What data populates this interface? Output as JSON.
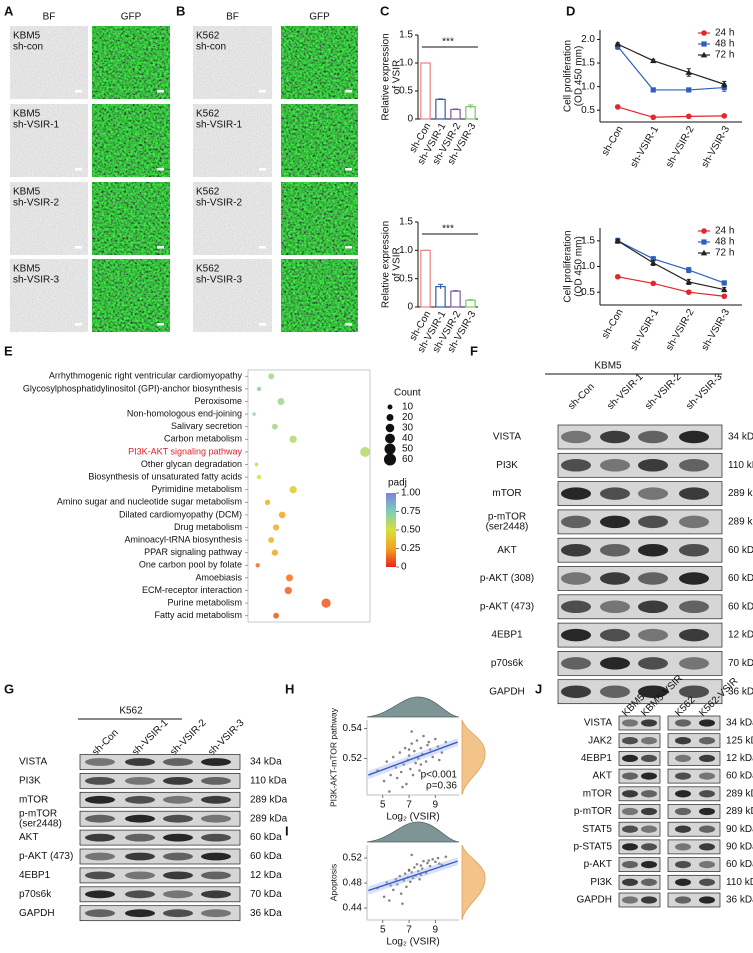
{
  "panel_labels": [
    "A",
    "B",
    "C",
    "D",
    "E",
    "F",
    "G",
    "H",
    "I",
    "J"
  ],
  "panel_a": {
    "columns": [
      "BF",
      "GFP"
    ],
    "rows": [
      [
        "KBM5",
        "sh-con"
      ],
      [
        "KBM5",
        "sh-VSIR-1"
      ],
      [
        "KBM5",
        "sh-VSIR-2"
      ],
      [
        "KBM5",
        "sh-VSIR-3"
      ]
    ]
  },
  "panel_b": {
    "columns": [
      "BF",
      "GFP"
    ],
    "rows": [
      [
        "K562",
        "sh-con"
      ],
      [
        "K562",
        "sh-VSIR-1"
      ],
      [
        "K562",
        "sh-VSIR-2"
      ],
      [
        "K562",
        "sh-VSIR-3"
      ]
    ]
  },
  "chart_data": [
    {
      "type": "bar",
      "categories": [
        "sh-Con",
        "sh-VSIR-1",
        "sh-VSIR-2",
        "sh-VSIR-3"
      ],
      "values": [
        1,
        0.35,
        0.17,
        0.22
      ],
      "errors": [
        0,
        0.01,
        0.01,
        0.03
      ],
      "colors": [
        "#f08080",
        "#2f5ea8",
        "#7a5aa6",
        "#7cc46a"
      ],
      "ylim": [
        0,
        1.5
      ],
      "yticks": [
        0,
        0.5,
        {
          "value": 1,
          "label": "1.0"
        },
        1.5
      ],
      "ylabel": [
        "Relative expression",
        "of VSIR"
      ],
      "annotation": "***"
    },
    {
      "type": "bar",
      "categories": [
        "sh-Con",
        "sh-VSIR-1",
        "sh-VSIR-2",
        "sh-VSIR-3"
      ],
      "values": [
        1,
        0.36,
        0.28,
        0.12
      ],
      "errors": [
        0,
        0.04,
        0.01,
        0.01
      ],
      "colors": [
        "#f08080",
        "#2f5ea8",
        "#7a5aa6",
        "#7cc46a"
      ],
      "ylim": [
        0,
        1.5
      ],
      "yticks": [
        0,
        0.5,
        {
          "value": 1,
          "label": "1.0"
        },
        1.5
      ],
      "ylabel": [
        "Relative expression",
        "of VSIR"
      ],
      "annotation": "***"
    },
    {
      "type": "line",
      "categories": [
        "sh-Con",
        "sh-VSIR-1",
        "sh-VSIR-2",
        "sh-VSIR-3"
      ],
      "series": [
        {
          "name": "24 h",
          "color": "#e3262b",
          "marker": "circle",
          "values": [
            0.57,
            0.35,
            0.37,
            0.38
          ],
          "errors": [
            0.02,
            0.02,
            0.02,
            0.02
          ]
        },
        {
          "name": "48 h",
          "color": "#2d5fbf",
          "marker": "square",
          "values": [
            1.85,
            0.93,
            0.93,
            0.98
          ],
          "errors": [
            0.06,
            0.02,
            0.02,
            0.08
          ]
        },
        {
          "name": "72 h",
          "color": "#222222",
          "marker": "triangle",
          "values": [
            1.9,
            1.55,
            1.3,
            1.05
          ],
          "errors": [
            0.03,
            0.03,
            0.08,
            0.06
          ]
        }
      ],
      "ylim": [
        0.25,
        2.2
      ],
      "yticks": [
        0.5,
        {
          "value": 1,
          "label": "1.0"
        },
        1.5,
        {
          "value": 2,
          "label": "2.0"
        }
      ],
      "ylabel": [
        "Cell proliferation",
        "(OD 450 mm)"
      ],
      "legend": "upper right"
    },
    {
      "type": "line",
      "categories": [
        "sh-Con",
        "sh-VSIR-1",
        "sh-VSIR-2",
        "sh-VSIR-3"
      ],
      "series": [
        {
          "name": "24 h",
          "color": "#e3262b",
          "marker": "circle",
          "values": [
            0.8,
            0.67,
            0.5,
            0.42
          ],
          "errors": [
            0.02,
            0.02,
            0.02,
            0.02
          ]
        },
        {
          "name": "48 h",
          "color": "#2d5fbf",
          "marker": "square",
          "values": [
            1.5,
            1.15,
            0.93,
            0.68
          ],
          "errors": [
            0.05,
            0.04,
            0.05,
            0.03
          ]
        },
        {
          "name": "72 h",
          "color": "#222222",
          "marker": "triangle",
          "values": [
            1.5,
            1.07,
            0.7,
            0.55
          ],
          "errors": [
            0.03,
            0.05,
            0.05,
            0.04
          ]
        }
      ],
      "ylim": [
        0.25,
        1.75
      ],
      "yticks": [
        0.5,
        {
          "value": 1,
          "label": "1.0"
        },
        1.5
      ],
      "ylabel": [
        "Cell proliferation",
        "(OD 450 mm)"
      ],
      "legend": "upper right"
    },
    {
      "type": "dot",
      "categories": [
        "Arrhythmogenic right ventricular cardiomyopathy",
        "Glycosylphosphatidylinositol (GPI)-anchor biosynthesis",
        "Peroxisome",
        "Non-homologous end-joining",
        "Salivary secretion",
        "Carbon metabolism",
        "PI3K-AKT signaling pathway",
        "Other glycan degradation",
        "Biosynthesis of unsaturated fatty acids",
        "Pyrimidine metabolism",
        "Amino sugar and nucleotide sugar metabolism",
        "Dilated cardiomyopathy (DCM)",
        "Drug metabolism",
        "Aminoacyl-tRNA biosynthesis",
        "PPAR signaling pathway",
        "One carbon pool by folate",
        "Amoebiasis",
        "ECM-receptor interaction",
        "Purine metabolism",
        "Fatty acid metabolism"
      ],
      "x": [
        0.19,
        0.09,
        0.27,
        0.05,
        0.22,
        0.37,
        0.96,
        0.07,
        0.09,
        0.37,
        0.16,
        0.28,
        0.23,
        0.19,
        0.22,
        0.08,
        0.34,
        0.33,
        0.64,
        0.23
      ],
      "xlim": [
        0,
        1
      ],
      "counts": [
        14,
        8,
        20,
        5,
        14,
        22,
        40,
        6,
        8,
        22,
        12,
        18,
        16,
        14,
        16,
        8,
        20,
        22,
        35,
        14
      ],
      "padj": [
        0.65,
        0.7,
        0.65,
        0.7,
        0.65,
        0.6,
        0.6,
        0.55,
        0.5,
        0.4,
        0.3,
        0.25,
        0.3,
        0.3,
        0.25,
        0.15,
        0.15,
        0.12,
        0.1,
        0.1
      ],
      "highlighted": "PI3K-AKT signaling pathway",
      "highlight_color": "#e0202a",
      "size_title": "Count",
      "size_legend": [
        10,
        20,
        30,
        40,
        50,
        60
      ],
      "color_title": "padj",
      "color_lim": [
        0,
        1
      ],
      "color_ticks": [
        0,
        0.25,
        {
          "value": 0.5,
          "label": "0.50"
        },
        0.75,
        {
          "value": 1,
          "label": "1.00"
        }
      ],
      "colorscale": [
        "#e8241c",
        "#f3a321",
        "#d6e03a",
        "#7dcfb8",
        "#7f7fe0"
      ]
    },
    {
      "type": "scatter",
      "x": [
        4.6,
        5.1,
        5.3,
        5.6,
        5.8,
        6.0,
        6.1,
        6.3,
        6.4,
        6.6,
        6.7,
        6.8,
        6.9,
        7.0,
        7.1,
        7.2,
        7.3,
        7.4,
        7.5,
        7.6,
        7.7,
        7.8,
        7.9,
        8.0,
        8.1,
        8.3,
        8.4,
        8.6,
        8.8,
        9.0,
        9.2,
        9.5,
        9.8,
        6.5,
        7.2,
        7.9,
        8.5,
        5.5,
        9.3,
        7.0
      ],
      "y": [
        0.512,
        0.505,
        0.518,
        0.509,
        0.521,
        0.514,
        0.507,
        0.524,
        0.511,
        0.516,
        0.527,
        0.503,
        0.519,
        0.522,
        0.513,
        0.53,
        0.509,
        0.525,
        0.517,
        0.532,
        0.52,
        0.512,
        0.527,
        0.523,
        0.535,
        0.518,
        0.529,
        0.526,
        0.521,
        0.533,
        0.528,
        0.524,
        0.531,
        0.501,
        0.538,
        0.516,
        0.531,
        0.498,
        0.519,
        0.526
      ],
      "trend": {
        "x": [
          3.9,
          10.7
        ],
        "y": [
          0.509,
          0.531
        ]
      },
      "xlim": [
        3.8,
        10.8
      ],
      "ylim": [
        0.4957,
        0.5457
      ],
      "xticks": [
        5,
        7,
        9
      ],
      "yticks": [
        0.52,
        0.54
      ],
      "xlabel": "Log₂ (VSIR)",
      "ylabel": "PI3K-AKT-mTOR pathway",
      "annotations": [
        "p<0.001",
        "ρ=0.36"
      ]
    },
    {
      "type": "scatter",
      "x": [
        4.6,
        5.1,
        5.3,
        5.6,
        5.8,
        6.0,
        6.1,
        6.3,
        6.4,
        6.6,
        6.7,
        6.8,
        6.9,
        7.0,
        7.1,
        7.2,
        7.3,
        7.4,
        7.5,
        7.6,
        7.7,
        7.8,
        7.9,
        8.0,
        8.1,
        8.3,
        8.4,
        8.6,
        8.8,
        9.0,
        9.2,
        9.5,
        9.8,
        6.5,
        7.2,
        7.9,
        8.5,
        5.5,
        9.3,
        7.0
      ],
      "y": [
        0.472,
        0.458,
        0.481,
        0.476,
        0.469,
        0.486,
        0.478,
        0.491,
        0.463,
        0.484,
        0.495,
        0.474,
        0.489,
        0.501,
        0.482,
        0.497,
        0.488,
        0.505,
        0.492,
        0.51,
        0.499,
        0.486,
        0.508,
        0.503,
        0.515,
        0.496,
        0.512,
        0.507,
        0.518,
        0.514,
        0.52,
        0.509,
        0.522,
        0.447,
        0.525,
        0.493,
        0.516,
        0.452,
        0.511,
        0.5
      ],
      "trend": {
        "x": [
          3.9,
          10.7
        ],
        "y": [
          0.468,
          0.515
        ]
      },
      "xlim": [
        3.8,
        10.8
      ],
      "ylim": [
        0.4208,
        0.5408
      ],
      "xticks": [
        5,
        7,
        9
      ],
      "yticks": [
        0.44,
        0.48,
        0.52
      ],
      "xlabel": "Log₂ (VSIR)",
      "ylabel": "Apoptosis",
      "annotations": []
    }
  ],
  "panel_f": {
    "title": "KBM5",
    "lanes": [
      "sh-Con",
      "sh-VSIR-1",
      "sh-VSIR-2",
      "sh-VSIR-3"
    ],
    "proteins": [
      [
        "VISTA"
      ],
      [
        "PI3K"
      ],
      [
        "mTOR"
      ],
      [
        "p-mTOR",
        "(ser2448)"
      ],
      [
        "AKT"
      ],
      [
        "p-AKT (308)"
      ],
      [
        "p-AKT (473)"
      ],
      [
        "4EBP1"
      ],
      [
        "p70s6k"
      ],
      [
        "GAPDH"
      ]
    ],
    "sizes": [
      "34 kDa",
      "110 kDa",
      "289 kDa",
      "289 kDa",
      "60 kDa",
      "60 kDa",
      "60 kDa",
      "12 kDa",
      "70 kDa",
      "36 kDa"
    ]
  },
  "panel_g": {
    "title": "K562",
    "lanes": [
      "sh-Con",
      "sh-VSIR-1",
      "sh-VSIR-2",
      "sh-VSIR-3"
    ],
    "proteins": [
      [
        "VISTA"
      ],
      [
        "PI3K"
      ],
      [
        "mTOR"
      ],
      [
        "p-mTOR",
        "(ser2448)"
      ],
      [
        "AKT"
      ],
      [
        "p-AKT (473)"
      ],
      [
        "4EBP1"
      ],
      [
        "p70s6k"
      ],
      [
        "GAPDH"
      ]
    ],
    "sizes": [
      "34 kDa",
      "110 kDa",
      "289 kDa",
      "289 kDa",
      "60 kDa",
      "60 kDa",
      "12 kDa",
      "70 kDa",
      "36 kDa"
    ]
  },
  "panel_j": {
    "lanes": [
      "KBM5",
      "KBM5-VSIR",
      "K562",
      "K562-VSIR"
    ],
    "proteins": [
      [
        "VISTA"
      ],
      [
        "JAK2"
      ],
      [
        "4EBP1"
      ],
      [
        "AKT"
      ],
      [
        "mTOR"
      ],
      [
        "p-mTOR"
      ],
      [
        "STAT5"
      ],
      [
        "p-STAT5"
      ],
      [
        "p-AKT"
      ],
      [
        "PI3K"
      ],
      [
        "GAPDH"
      ]
    ],
    "sizes": [
      "34 kDa",
      "125 kDa",
      "12 kDa",
      "60 kDa",
      "289 kDa",
      "289 kDa",
      "90 kDa",
      "90 kDa",
      "60 kDa",
      "110 kDa",
      "36 kDa"
    ]
  }
}
